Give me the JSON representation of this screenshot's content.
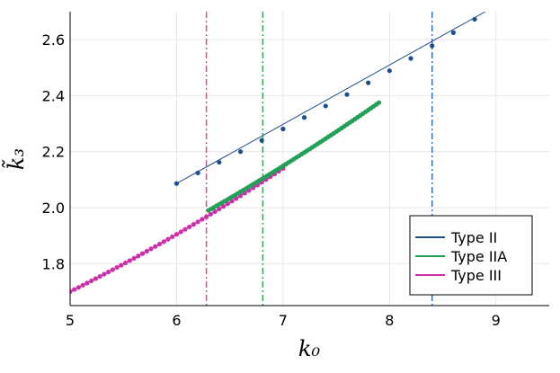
{
  "chart_data": {
    "type": "line",
    "xlabel": "k₀",
    "ylabel": "k̃₃",
    "xlim": [
      5,
      9.5
    ],
    "ylim": [
      1.65,
      2.7
    ],
    "xticks": [
      5,
      6,
      7,
      8,
      9
    ],
    "yticks": [
      1.8,
      2.0,
      2.2,
      2.4,
      2.6
    ],
    "x_tick_labels": [
      "5",
      "6",
      "7",
      "8",
      "9"
    ],
    "y_tick_labels": [
      "1.8",
      "2.0",
      "2.2",
      "2.4",
      "2.6"
    ],
    "grid": true,
    "legend_position": "bottom-right",
    "series": [
      {
        "name": "Type II",
        "color": "#1f4e8c",
        "style": "line+markers",
        "line_x": [
          6.0,
          8.9
        ],
        "line_y": [
          2.086,
          2.7
        ],
        "x": [
          6.0,
          6.2,
          6.4,
          6.6,
          6.8,
          7.0,
          7.2,
          7.4,
          7.6,
          7.8,
          8.0,
          8.2,
          8.4,
          8.6,
          8.8
        ],
        "y": [
          2.086,
          2.124,
          2.162,
          2.2,
          2.24,
          2.281,
          2.322,
          2.363,
          2.404,
          2.446,
          2.489,
          2.533,
          2.578,
          2.625,
          2.673
        ]
      },
      {
        "name": "Type IIA",
        "color": "#22a057",
        "style": "markers",
        "x_start": 6.3,
        "x_end": 7.9,
        "x_step": 0.025,
        "y_start": 1.99,
        "y_end": 2.375
      },
      {
        "name": "Type III",
        "color": "#cc2fa8",
        "style": "markers",
        "x_start": 5.0,
        "x_end": 7.0,
        "x_step": 0.04,
        "y_at_start": 1.7,
        "y_at_6": 1.91,
        "y_at_end": 2.14
      }
    ],
    "vlines": [
      {
        "x": 6.28,
        "color": "#e0459f"
      },
      {
        "x": 6.81,
        "color": "#3aa35a"
      },
      {
        "x": 8.4,
        "color": "#3a6fc0"
      }
    ]
  }
}
